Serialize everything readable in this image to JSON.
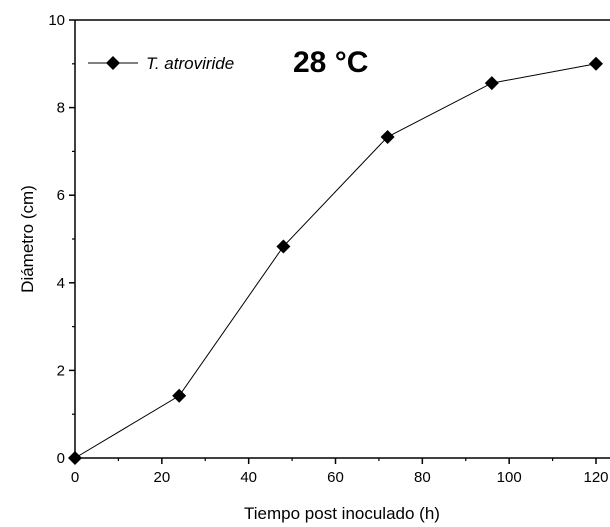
{
  "chart_data": {
    "type": "line",
    "xlabel": "Tiempo post inoculado (h)",
    "ylabel": "Diámetro (cm)",
    "xlim": [
      0,
      120
    ],
    "ylim": [
      0,
      10
    ],
    "xticks": [
      "0",
      "20",
      "40",
      "60",
      "80",
      "100",
      "120"
    ],
    "yticks": [
      "0",
      "2",
      "4",
      "6",
      "8",
      "10"
    ],
    "grid": false,
    "legend_position": "top-left",
    "annotation": "28 °C",
    "series": [
      {
        "name": "T. atroviride",
        "marker": "diamond",
        "color": "#000000",
        "x": [
          0,
          24,
          48,
          72,
          96,
          120
        ],
        "y": [
          0,
          1.42,
          4.83,
          7.33,
          8.56,
          9.0
        ]
      }
    ]
  }
}
